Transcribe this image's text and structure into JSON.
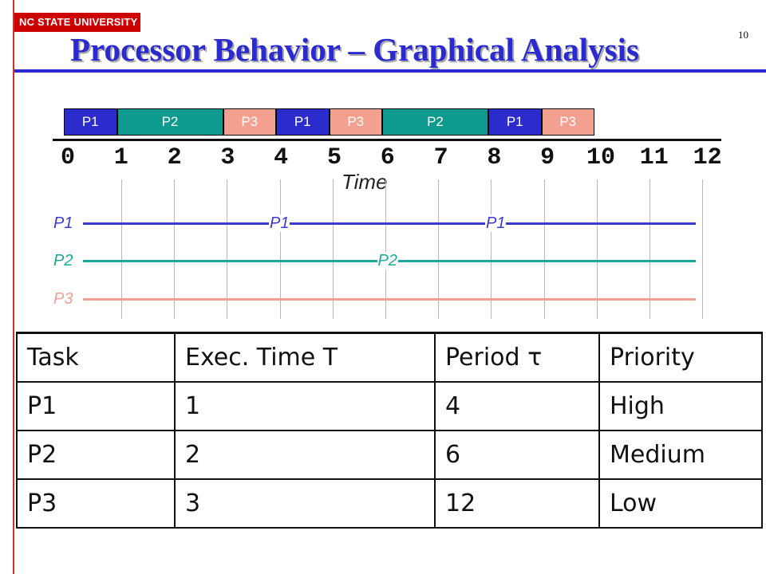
{
  "header": {
    "logo_text": "NC STATE UNIVERSITY",
    "page_number": "10",
    "title": "Processor Behavior – Graphical Analysis"
  },
  "schedule": {
    "blocks": [
      {
        "task": "P1",
        "start": 0,
        "end": 1
      },
      {
        "task": "P2",
        "start": 1,
        "end": 3
      },
      {
        "task": "P3",
        "start": 3,
        "end": 4
      },
      {
        "task": "P1",
        "start": 4,
        "end": 5
      },
      {
        "task": "P3",
        "start": 5,
        "end": 6
      },
      {
        "task": "P2",
        "start": 6,
        "end": 8
      },
      {
        "task": "P1",
        "start": 8,
        "end": 9
      },
      {
        "task": "P3",
        "start": 9,
        "end": 10
      }
    ],
    "ticks": [
      "0",
      "1",
      "2",
      "3",
      "4",
      "5",
      "6",
      "7",
      "8",
      "9",
      "10",
      "11",
      "12"
    ],
    "time_label": "Time"
  },
  "release_lines": [
    {
      "task": "P1",
      "markers": [
        0,
        4,
        8
      ],
      "label": "P1"
    },
    {
      "task": "P2",
      "markers": [
        0,
        6
      ],
      "label": "P2"
    },
    {
      "task": "P3",
      "markers": [
        0
      ],
      "label": "P3"
    }
  ],
  "colors": {
    "P1": "#2c2ccc",
    "P2": "#0e9a8e",
    "P3": "#f4a090",
    "title": "#2a2ad0",
    "logo": "#cc0000"
  },
  "table": {
    "headers": [
      "Task",
      "Exec. Time T",
      "Period τ",
      "Priority"
    ],
    "rows": [
      [
        "P1",
        "1",
        "4",
        "High"
      ],
      [
        "P2",
        "2",
        "6",
        "Medium"
      ],
      [
        "P3",
        "3",
        "12",
        "Low"
      ]
    ]
  }
}
